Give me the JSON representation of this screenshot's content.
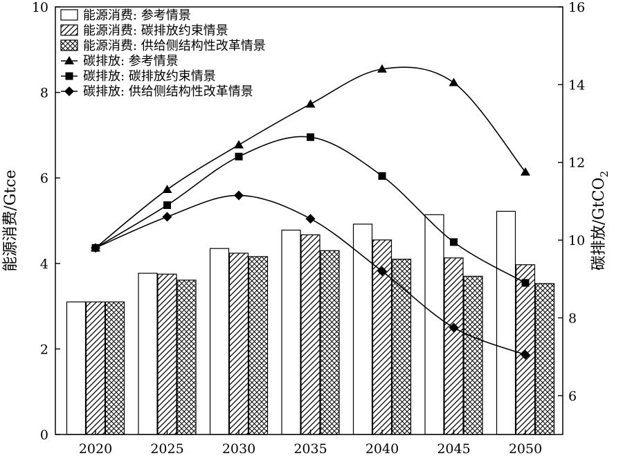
{
  "chart_data": {
    "type": "bar",
    "categories": [
      "2020",
      "2025",
      "2030",
      "2035",
      "2040",
      "2045",
      "2050"
    ],
    "ylabel_left": "能源消费/Gtce",
    "ylabel_right_main": "碳排放/GtCO",
    "ylabel_right_sub": "2",
    "ylim_left": [
      0,
      10
    ],
    "ylim_right": [
      5,
      16
    ],
    "yticks_left": [
      "0",
      "2",
      "4",
      "6",
      "8",
      "10"
    ],
    "yticks_right": [
      "6",
      "8",
      "10",
      "12",
      "14",
      "16"
    ],
    "grid": false,
    "legend_position": "top-left",
    "bar_series": [
      {
        "name": "能源消费: 参考情景",
        "pattern": "blank",
        "values": [
          3.1,
          3.77,
          4.35,
          4.78,
          4.92,
          5.14,
          5.22
        ]
      },
      {
        "name": "能源消费: 碳排放约束情景",
        "pattern": "hatch",
        "values": [
          3.1,
          3.75,
          4.24,
          4.67,
          4.55,
          4.13,
          3.97
        ]
      },
      {
        "name": "能源消费: 供给侧结构性改革情景",
        "pattern": "crosshatch",
        "values": [
          3.1,
          3.61,
          4.16,
          4.3,
          4.1,
          3.7,
          3.53
        ]
      }
    ],
    "line_series": [
      {
        "name": "碳排放: 参考情景",
        "marker": "triangle",
        "values": [
          9.8,
          11.3,
          12.45,
          13.5,
          14.4,
          14.05,
          11.75
        ]
      },
      {
        "name": "碳排放: 碳排放约束情景",
        "marker": "square",
        "values": [
          9.8,
          10.9,
          12.15,
          12.65,
          11.65,
          9.95,
          8.9
        ]
      },
      {
        "name": "碳排放: 供给侧结构性改革情景",
        "marker": "diamond",
        "values": [
          9.8,
          10.6,
          11.15,
          10.55,
          9.2,
          7.75,
          7.05
        ]
      }
    ]
  }
}
